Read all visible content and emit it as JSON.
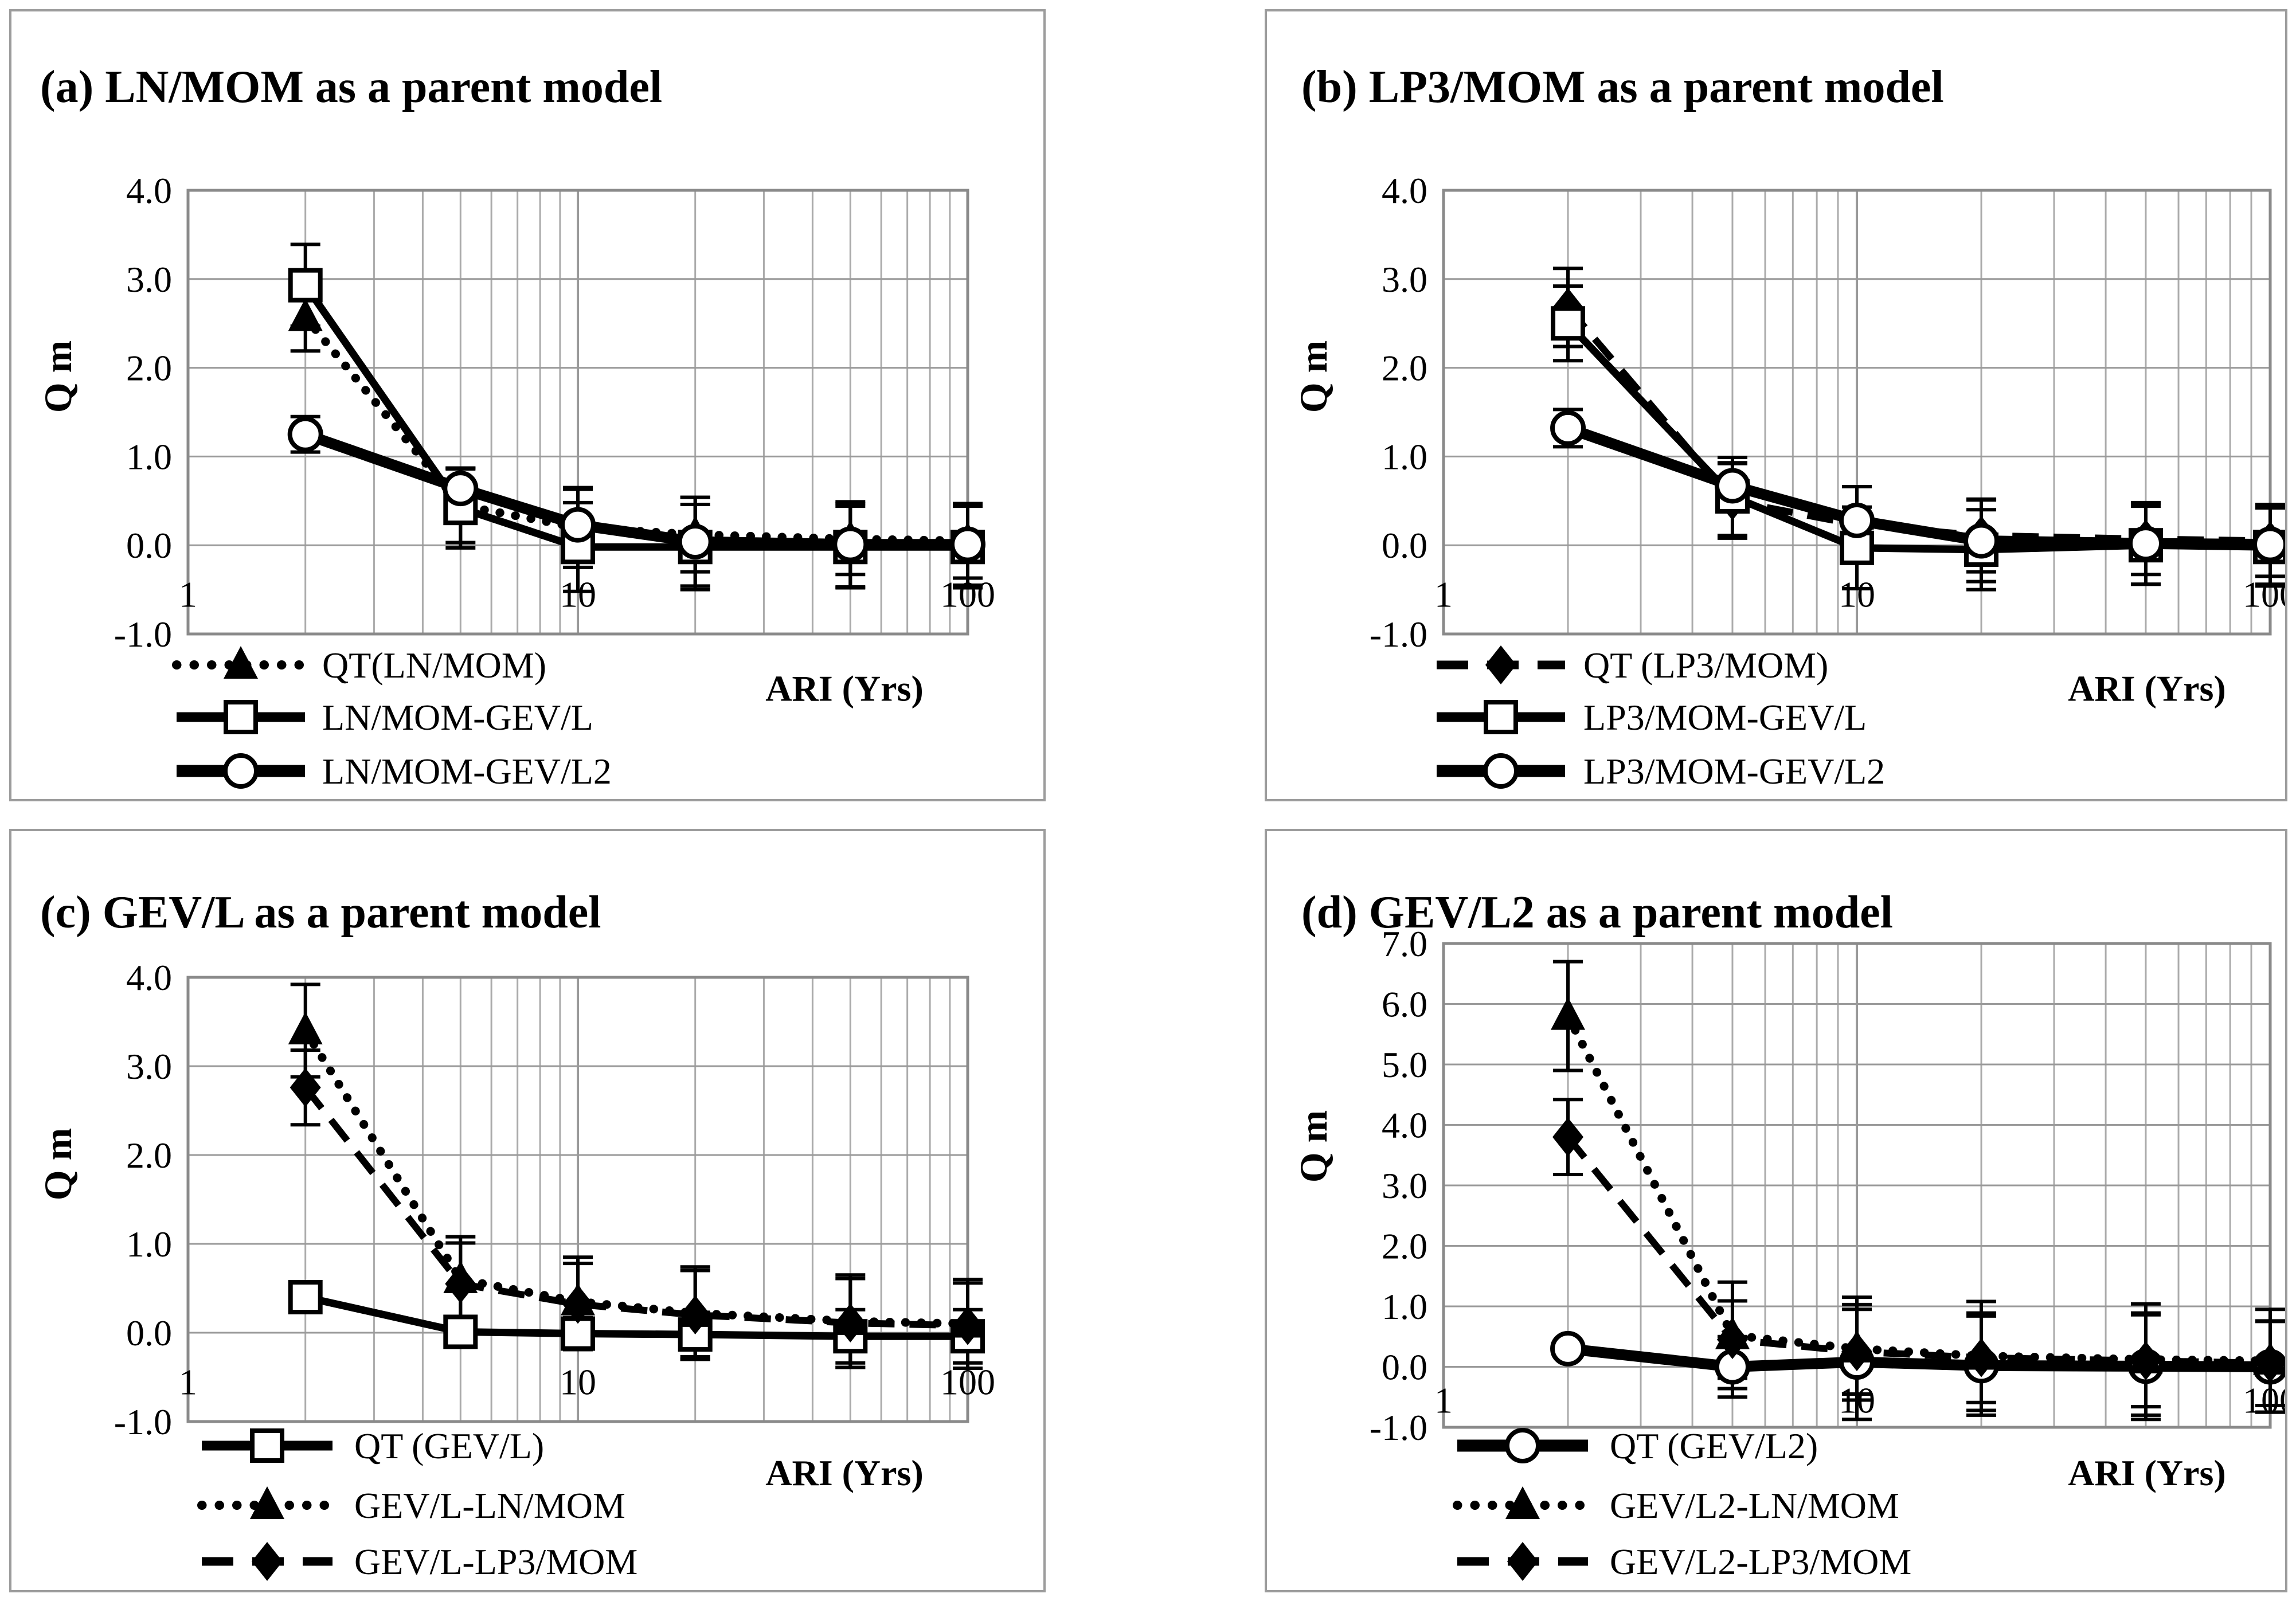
{
  "figure": {
    "background": "#ffffff",
    "panel_border_color": "#9c9c9c",
    "grid_color": "#ababab",
    "grid_major_color": "#9a9a9a",
    "frame_color": "#8a8a8a",
    "series_color": "#000000",
    "legend_position": "bottom-left",
    "grid": "on"
  },
  "chart_data": [
    {
      "type": "line",
      "error_bars": true,
      "title": "(a) LN/MOM as a parent model",
      "xlabel": "ARI (Yrs)",
      "ylabel": "Q m",
      "xscale": "log",
      "xlim": [
        1,
        100
      ],
      "ylim": [
        -1.0,
        4.0
      ],
      "xticks": [
        1,
        10,
        100
      ],
      "yticks": [
        4.0,
        3.0,
        2.0,
        1.0,
        0.0,
        -1.0
      ],
      "x": [
        2,
        5,
        10,
        20,
        50,
        100
      ],
      "series": [
        {
          "name": "QT(LN/MOM)",
          "line": "dotted",
          "marker": "triangle",
          "values": [
            2.57,
            0.45,
            0.2,
            0.12,
            0.07,
            0.05
          ],
          "errors": [
            0.38,
            0.42,
            0.45,
            0.42,
            0.4,
            0.42
          ]
        },
        {
          "name": "LN/MOM-GEV/L",
          "line": "solid",
          "marker": "square",
          "values": [
            2.93,
            0.42,
            -0.02,
            -0.02,
            -0.02,
            -0.02
          ],
          "errors": [
            0.46,
            0.45,
            0.5,
            0.48,
            0.46,
            0.46
          ]
        },
        {
          "name": "LN/MOM-GEV/L2",
          "line": "solid-thick",
          "marker": "circle",
          "values": [
            1.25,
            0.64,
            0.23,
            0.04,
            0.01,
            0.01
          ],
          "errors": [
            0.2,
            0.22,
            0.4,
            0.5,
            0.48,
            0.46
          ]
        }
      ]
    },
    {
      "type": "line",
      "error_bars": true,
      "title": "(b) LP3/MOM as a parent model",
      "xlabel": "ARI (Yrs)",
      "ylabel": "Q m",
      "xscale": "log",
      "xlim": [
        1,
        100
      ],
      "ylim": [
        -1.0,
        4.0
      ],
      "xticks": [
        1,
        10,
        100
      ],
      "yticks": [
        4.0,
        3.0,
        2.0,
        1.0,
        0.0,
        -1.0
      ],
      "x": [
        2,
        5,
        10,
        20,
        50,
        100
      ],
      "series": [
        {
          "name": "QT (LP3/MOM)",
          "line": "dashed",
          "marker": "diamond",
          "values": [
            2.68,
            0.5,
            0.23,
            0.11,
            0.07,
            0.05
          ],
          "errors": [
            0.44,
            0.42,
            0.43,
            0.41,
            0.4,
            0.4
          ]
        },
        {
          "name": "LP3/MOM-GEV/L",
          "line": "solid",
          "marker": "square",
          "values": [
            2.5,
            0.55,
            -0.03,
            -0.05,
            0.0,
            -0.02
          ],
          "errors": [
            0.42,
            0.44,
            0.46,
            0.45,
            0.44,
            0.44
          ]
        },
        {
          "name": "LP3/MOM-GEV/L2",
          "line": "solid-thick",
          "marker": "circle",
          "values": [
            1.32,
            0.67,
            0.28,
            0.05,
            0.02,
            0.01
          ],
          "errors": [
            0.21,
            0.26,
            0.38,
            0.46,
            0.46,
            0.45
          ]
        }
      ]
    },
    {
      "type": "line",
      "error_bars": true,
      "title": "(c) GEV/L as a parent model",
      "xlabel": "ARI (Yrs)",
      "ylabel": "Q m",
      "xscale": "log",
      "xlim": [
        1,
        100
      ],
      "ylim": [
        -1.0,
        4.0
      ],
      "xticks": [
        1,
        10,
        100
      ],
      "yticks": [
        4.0,
        3.0,
        2.0,
        1.0,
        0.0,
        -1.0
      ],
      "x": [
        2,
        5,
        10,
        20,
        50,
        100
      ],
      "series": [
        {
          "name": "QT (GEV/L)",
          "line": "solid",
          "marker": "square",
          "values": [
            0.4,
            0.01,
            -0.01,
            -0.02,
            -0.04,
            -0.04
          ],
          "errors": [
            0.1,
            0.15,
            0.18,
            0.25,
            0.3,
            0.3
          ]
        },
        {
          "name": "GEV/L-LN/MOM",
          "line": "dotted",
          "marker": "triangle",
          "values": [
            3.4,
            0.6,
            0.35,
            0.22,
            0.13,
            0.1
          ],
          "errors": [
            0.52,
            0.48,
            0.5,
            0.52,
            0.52,
            0.5
          ]
        },
        {
          "name": "GEV/L-LP3/MOM",
          "line": "dashed",
          "marker": "diamond",
          "values": [
            2.76,
            0.55,
            0.32,
            0.2,
            0.11,
            0.08
          ],
          "errors": [
            0.42,
            0.46,
            0.46,
            0.5,
            0.5,
            0.48
          ]
        }
      ]
    },
    {
      "type": "line",
      "error_bars": true,
      "title": "(d) GEV/L2 as a parent model",
      "xlabel": "ARI (Yrs)",
      "ylabel": "Q m",
      "xscale": "log",
      "xlim": [
        1,
        100
      ],
      "ylim": [
        -1.0,
        7.0
      ],
      "xticks": [
        1,
        10,
        100
      ],
      "yticks": [
        7.0,
        6.0,
        5.0,
        4.0,
        3.0,
        2.0,
        1.0,
        0.0,
        -1.0
      ],
      "x": [
        2,
        5,
        10,
        20,
        50,
        100
      ],
      "series": [
        {
          "name": "QT (GEV/L2)",
          "line": "solid-thick",
          "marker": "circle",
          "values": [
            0.3,
            0.0,
            0.08,
            0.02,
            0.01,
            0.0
          ],
          "errors": [
            0.1,
            0.5,
            0.95,
            0.82,
            0.88,
            0.75
          ]
        },
        {
          "name": "GEV/L2-LN/MOM",
          "line": "dotted",
          "marker": "triangle",
          "values": [
            5.8,
            0.52,
            0.3,
            0.18,
            0.12,
            0.1
          ],
          "errors": [
            0.9,
            0.88,
            0.85,
            0.9,
            0.92,
            0.85
          ]
        },
        {
          "name": "GEV/L2-LP3/MOM",
          "line": "dashed",
          "marker": "diamond",
          "values": [
            3.8,
            0.45,
            0.25,
            0.15,
            0.1,
            0.06
          ],
          "errors": [
            0.62,
            0.64,
            0.7,
            0.74,
            0.76,
            0.7
          ]
        }
      ]
    }
  ]
}
